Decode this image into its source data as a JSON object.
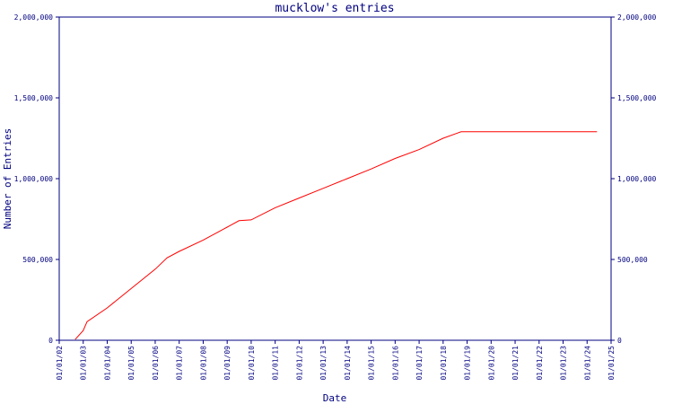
{
  "chart_data": {
    "type": "line",
    "title": "mucklow's entries",
    "xlabel": "Date",
    "ylabel": "Number of Entries",
    "x_ticks": [
      "01/01/02",
      "01/01/03",
      "01/01/04",
      "01/01/05",
      "01/01/06",
      "01/01/07",
      "01/01/08",
      "01/01/09",
      "01/01/10",
      "01/01/11",
      "01/01/12",
      "01/01/13",
      "01/01/14",
      "01/01/15",
      "01/01/16",
      "01/01/17",
      "01/01/18",
      "01/01/19",
      "01/01/20",
      "01/01/21",
      "01/01/22",
      "01/01/23",
      "01/01/24",
      "01/01/25"
    ],
    "y_ticks": [
      {
        "value": 0,
        "label": "0"
      },
      {
        "value": 500000,
        "label": "500,000"
      },
      {
        "value": 1000000,
        "label": "1,000,000"
      },
      {
        "value": 1500000,
        "label": "1,500,000"
      },
      {
        "value": 2000000,
        "label": "2,000,000"
      }
    ],
    "ylim": [
      0,
      2000000
    ],
    "xlim": [
      "2002-01-01",
      "2025-01-01"
    ],
    "grid": false,
    "line_color": "#ff0000",
    "axis_color": "#000080",
    "series": [
      {
        "x": [
          "2002-09-01",
          "2003-01-01",
          "2003-03-01",
          "2004-01-01",
          "2005-01-01",
          "2006-01-01",
          "2006-07-01",
          "2007-01-01",
          "2008-01-01",
          "2009-01-01",
          "2009-07-01",
          "2010-01-01",
          "2011-01-01",
          "2012-01-01",
          "2013-01-01",
          "2014-01-01",
          "2015-01-01",
          "2016-01-01",
          "2017-01-01",
          "2018-01-01",
          "2018-10-01",
          "2020-01-01",
          "2022-01-01",
          "2024-06-01"
        ],
        "y": [
          5000,
          60000,
          115000,
          200000,
          320000,
          440000,
          510000,
          550000,
          620000,
          700000,
          740000,
          745000,
          820000,
          880000,
          940000,
          1000000,
          1060000,
          1125000,
          1180000,
          1250000,
          1290000,
          1290000,
          1290000,
          1290000
        ]
      }
    ]
  }
}
